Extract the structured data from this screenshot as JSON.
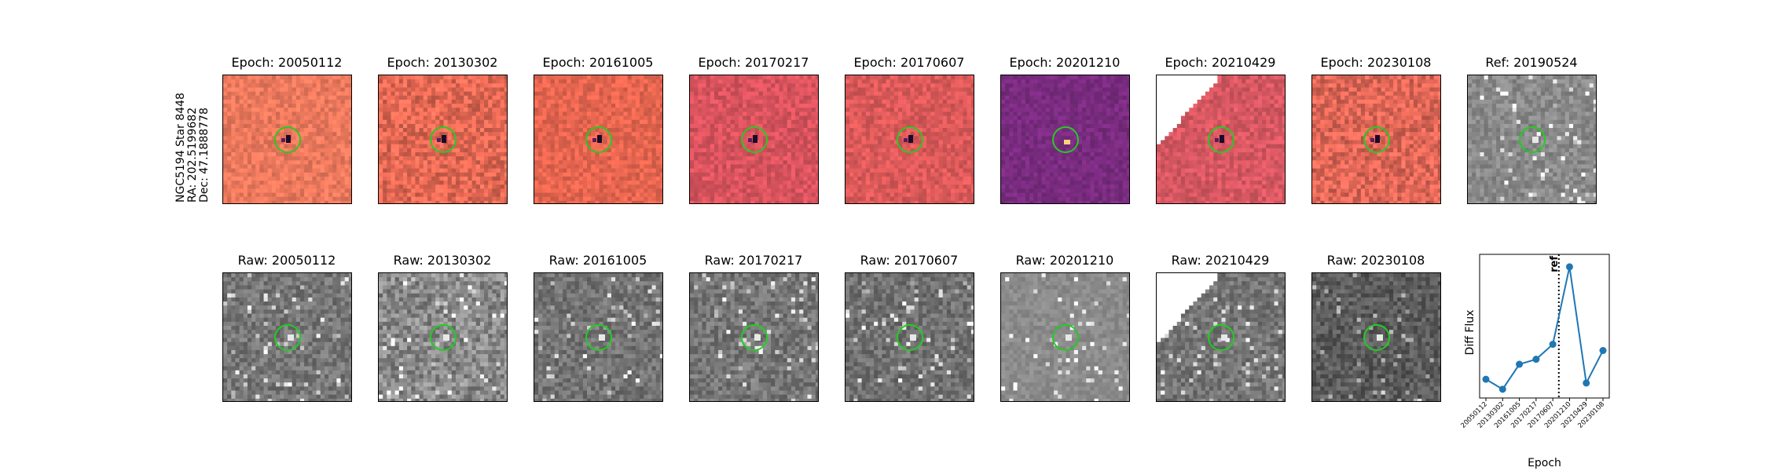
{
  "star_label": {
    "line1": "NGC5194 Star 8448",
    "line2": "RA: 202.5199682",
    "line3": "Dec: 47.1888778"
  },
  "diff_titles": [
    "Epoch: 20050112",
    "Epoch: 20130302",
    "Epoch: 20161005",
    "Epoch: 20170217",
    "Epoch: 20170607",
    "Epoch: 20201210",
    "Epoch: 20210429",
    "Epoch: 20230108"
  ],
  "ref_title": "Ref: 20190524",
  "raw_titles": [
    "Raw: 20050112",
    "Raw: 20130302",
    "Raw: 20161005",
    "Raw: 20170217",
    "Raw: 20170607",
    "Raw: 20201210",
    "Raw: 20210429",
    "Raw: 20230108"
  ],
  "colors": {
    "aperture_circle": "#22cc22",
    "diff_orange": "#ee7a5e",
    "diff_purple": "#7a2c80",
    "series": "#1f77b4"
  },
  "chart_data": {
    "type": "line",
    "xlabel": "Epoch",
    "ylabel": "Diff Flux",
    "categories": [
      "20050112",
      "20130302",
      "20161005",
      "20170217",
      "20170607",
      "20201210",
      "20210429",
      "20230108"
    ],
    "series": [
      {
        "values": [
          0.1,
          0.02,
          0.22,
          0.26,
          0.38,
          1.0,
          0.07,
          0.33
        ]
      }
    ],
    "ylim": [
      -0.05,
      1.1
    ],
    "ref_line": {
      "label": "ref",
      "position_between": [
        "20170607",
        "20201210"
      ]
    },
    "grid": false
  }
}
